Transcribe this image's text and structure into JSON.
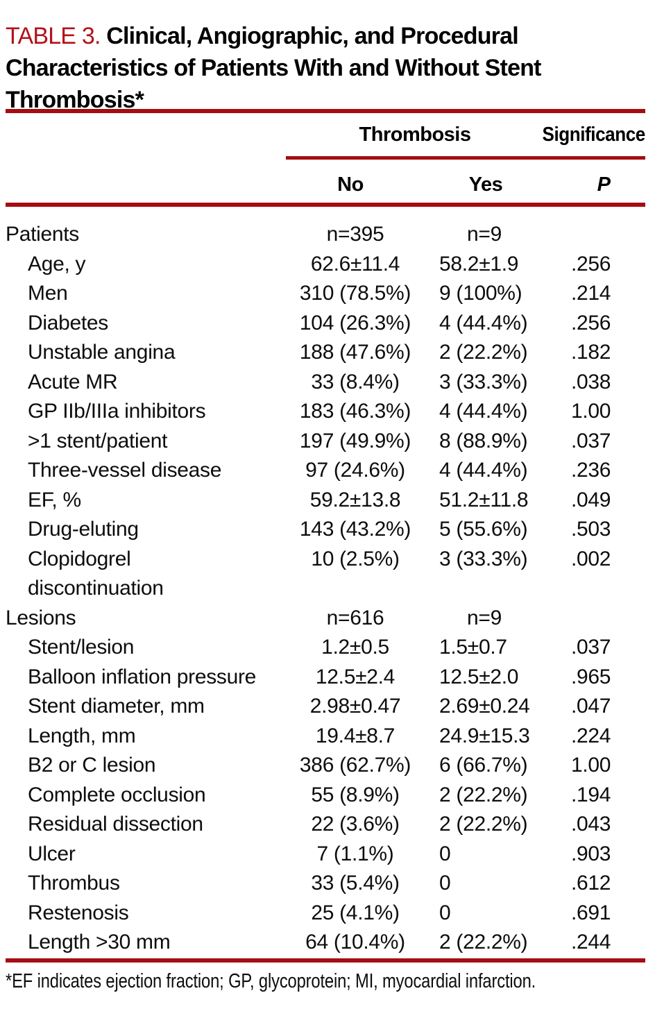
{
  "title": {
    "table_label": "TABLE 3.",
    "line1": "Clinical, Angiographic, and Procedural",
    "line2": "Characteristics of Patients With and Without Stent",
    "line3": "Thrombosis*"
  },
  "colors": {
    "accent_red": "#a50d12",
    "title_red": "#b3121a",
    "text_black": "#0d0d0d"
  },
  "header": {
    "group_thrombosis": "Thrombosis",
    "group_significance": "Significance",
    "col_no": "No",
    "col_yes": "Yes",
    "col_p": "P"
  },
  "table": {
    "rows": [
      {
        "label": "Patients",
        "no": "n=395",
        "yes": "n=9",
        "p": "",
        "section": true
      },
      {
        "label": "Age, y",
        "no": "62.6±11.4",
        "yes": "58.2±1.9",
        "p": ".256"
      },
      {
        "label": "Men",
        "no": "310 (78.5%)",
        "yes": "9 (100%)",
        "p": ".214"
      },
      {
        "label": "Diabetes",
        "no": "104 (26.3%)",
        "yes": "4 (44.4%)",
        "p": ".256"
      },
      {
        "label": "Unstable angina",
        "no": "188 (47.6%)",
        "yes": "2 (22.2%)",
        "p": ".182"
      },
      {
        "label": "Acute MR",
        "no": "33 (8.4%)",
        "yes": "3 (33.3%)",
        "p": ".038"
      },
      {
        "label": "GP IIb/IIIa inhibitors",
        "no": "183 (46.3%)",
        "yes": "4 (44.4%)",
        "p": "1.00"
      },
      {
        "label": ">1 stent/patient",
        "no": "197 (49.9%)",
        "yes": "8 (88.9%)",
        "p": ".037"
      },
      {
        "label": "Three-vessel disease",
        "no": "97 (24.6%)",
        "yes": "4 (44.4%)",
        "p": ".236"
      },
      {
        "label": "EF, %",
        "no": "59.2±13.8",
        "yes": "51.2±11.8",
        "p": ".049"
      },
      {
        "label": "Drug-eluting",
        "no": "143 (43.2%)",
        "yes": "5 (55.6%)",
        "p": ".503"
      },
      {
        "label": "Clopidogrel",
        "label2": "discontinuation",
        "no": "10 (2.5%)",
        "yes": "3 (33.3%)",
        "p": ".002"
      },
      {
        "label": "Lesions",
        "no": "n=616",
        "yes": "n=9",
        "p": "",
        "section": true
      },
      {
        "label": "Stent/lesion",
        "no": "1.2±0.5",
        "yes": "1.5±0.7",
        "p": ".037"
      },
      {
        "label": "Balloon inflation pressure",
        "no": "12.5±2.4",
        "yes": "12.5±2.0",
        "p": ".965"
      },
      {
        "label": "Stent diameter, mm",
        "no": "2.98±0.47",
        "yes": "2.69±0.24",
        "p": ".047"
      },
      {
        "label": "Length, mm",
        "no": "19.4±8.7",
        "yes": "24.9±15.3",
        "p": ".224"
      },
      {
        "label": "B2 or C lesion",
        "no": "386 (62.7%)",
        "yes": "6 (66.7%)",
        "p": "1.00"
      },
      {
        "label": "Complete occlusion",
        "no": "55 (8.9%)",
        "yes": "2 (22.2%)",
        "p": ".194"
      },
      {
        "label": "Residual dissection",
        "no": "22 (3.6%)",
        "yes": "2 (22.2%)",
        "p": ".043"
      },
      {
        "label": "Ulcer",
        "no": "7 (1.1%)",
        "yes": "0",
        "p": ".903"
      },
      {
        "label": "Thrombus",
        "no": "33 (5.4%)",
        "yes": "0",
        "p": ".612"
      },
      {
        "label": "Restenosis",
        "no": "25 (4.1%)",
        "yes": "0",
        "p": ".691"
      },
      {
        "label": "Length >30 mm",
        "no": "64 (10.4%)",
        "yes": "2 (22.2%)",
        "p": ".244"
      }
    ]
  },
  "footnote": "*EF indicates ejection fraction; GP, glycoprotein; MI, myocardial infarction."
}
